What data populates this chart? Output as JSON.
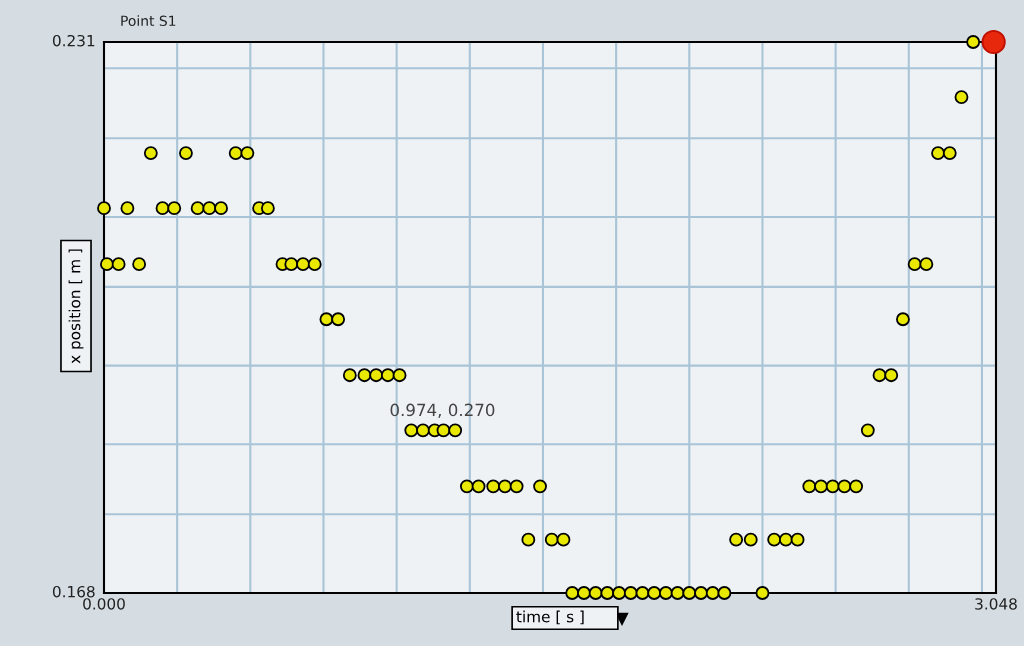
{
  "chart_data": {
    "type": "scatter",
    "title": "Point S1",
    "xlabel": "time [ s ]",
    "ylabel": "x position [ m ]",
    "xlim": [
      0,
      3.048
    ],
    "ylim": [
      0.168,
      0.231
    ],
    "xticks": [
      {
        "value": 0,
        "label": "0.000"
      },
      {
        "value": 0.25,
        "label": null
      },
      {
        "value": 0.5,
        "label": null
      },
      {
        "value": 0.75,
        "label": null
      },
      {
        "value": 1.0,
        "label": null
      },
      {
        "value": 1.25,
        "label": null
      },
      {
        "value": 1.5,
        "label": null
      },
      {
        "value": 1.75,
        "label": null
      },
      {
        "value": 2.0,
        "label": null
      },
      {
        "value": 2.25,
        "label": null
      },
      {
        "value": 2.5,
        "label": null
      },
      {
        "value": 2.75,
        "label": null
      },
      {
        "value": 3.0,
        "label": null
      },
      {
        "value": 3.048,
        "label": "3.048"
      }
    ],
    "yticks": [
      {
        "value": 0.168,
        "label": "0.168"
      },
      {
        "value": 0.177,
        "label": null
      },
      {
        "value": 0.185,
        "label": null
      },
      {
        "value": 0.194,
        "label": null
      },
      {
        "value": 0.203,
        "label": null
      },
      {
        "value": 0.211,
        "label": null
      },
      {
        "value": 0.22,
        "label": null
      },
      {
        "value": 0.228,
        "label": null
      },
      {
        "value": 0.231,
        "label": "0.231"
      }
    ],
    "grid": true,
    "marker": "circle",
    "legend": false,
    "annotations": [
      "0.974, 0.270"
    ],
    "series": [
      {
        "color": "#e8e800",
        "x": [
          0.0,
          0.01,
          0.05,
          0.08,
          0.12,
          0.16,
          0.2,
          0.24,
          0.28,
          0.32,
          0.36,
          0.4,
          0.45,
          0.49,
          0.53,
          0.56,
          0.61,
          0.64,
          0.68,
          0.72,
          0.76,
          0.8,
          0.84,
          0.89,
          0.93,
          0.97,
          1.01,
          1.05,
          1.09,
          1.13,
          1.16,
          1.2,
          1.24,
          1.28,
          1.33,
          1.37,
          1.41,
          1.45,
          1.49,
          1.53,
          1.57,
          1.6,
          1.64,
          1.68,
          1.72,
          1.76,
          1.8,
          1.84,
          1.88,
          1.92,
          1.96,
          2.0,
          2.04,
          2.08,
          2.12,
          2.16,
          2.21,
          2.25,
          2.29,
          2.33,
          2.37,
          2.41,
          2.45,
          2.49,
          2.53,
          2.57,
          2.61,
          2.65,
          2.69,
          2.73,
          2.77,
          2.81,
          2.85,
          2.89,
          2.93,
          2.97
        ],
        "values": [
          0.212,
          0.2056,
          0.2056,
          0.212,
          0.2056,
          0.2183,
          0.212,
          0.212,
          0.2183,
          0.212,
          0.212,
          0.212,
          0.2183,
          0.2183,
          0.212,
          0.212,
          0.2056,
          0.2056,
          0.2056,
          0.2056,
          0.1993,
          0.1993,
          0.1929,
          0.1929,
          0.1929,
          0.1929,
          0.1929,
          0.1866,
          0.1866,
          0.1866,
          0.1866,
          0.1866,
          0.1802,
          0.1802,
          0.1802,
          0.1802,
          0.1802,
          0.1741,
          0.1802,
          0.1741,
          0.1741,
          0.168,
          0.168,
          0.168,
          0.168,
          0.168,
          0.168,
          0.168,
          0.168,
          0.168,
          0.168,
          0.168,
          0.168,
          0.168,
          0.168,
          0.1741,
          0.1741,
          0.168,
          0.1741,
          0.1741,
          0.1741,
          0.1802,
          0.1802,
          0.1802,
          0.1802,
          0.1802,
          0.1866,
          0.1929,
          0.1929,
          0.1993,
          0.2056,
          0.2056,
          0.2183,
          0.2183,
          0.2247,
          0.231
        ]
      },
      {
        "color": "#e8280c",
        "x": [
          3.04
        ],
        "values": [
          0.231
        ]
      }
    ]
  }
}
